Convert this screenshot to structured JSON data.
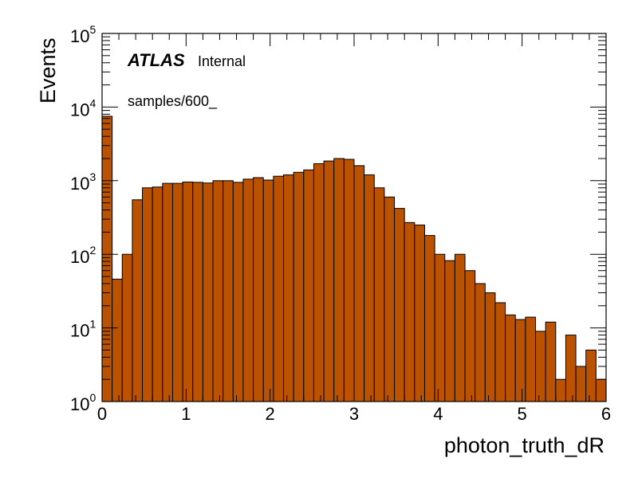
{
  "chart_data": {
    "type": "bar",
    "xlabel": "photon_truth_dR",
    "ylabel": "Events",
    "xlim": [
      0,
      6
    ],
    "ylim": [
      1,
      100000
    ],
    "y_scale": "log",
    "x_ticks": [
      "0",
      "1",
      "2",
      "3",
      "4",
      "5",
      "6"
    ],
    "y_ticks": [
      {
        "base": "10",
        "exp": "0"
      },
      {
        "base": "10",
        "exp": "1"
      },
      {
        "base": "10",
        "exp": "2"
      },
      {
        "base": "10",
        "exp": "3"
      },
      {
        "base": "10",
        "exp": "4"
      },
      {
        "base": "10",
        "exp": "5"
      }
    ],
    "bin_width": 0.12,
    "bin_edges_start": 0,
    "values": [
      7500,
      46,
      100,
      550,
      800,
      820,
      920,
      920,
      960,
      950,
      930,
      1000,
      1000,
      950,
      1050,
      1100,
      1020,
      1150,
      1200,
      1300,
      1400,
      1700,
      1850,
      2000,
      1950,
      1600,
      1200,
      800,
      600,
      420,
      270,
      250,
      180,
      100,
      82,
      100,
      60,
      40,
      30,
      22,
      15,
      13,
      14,
      9,
      12,
      2,
      8,
      3,
      5,
      2
    ],
    "fill_color": "#BB5200",
    "edge_color": "#000000",
    "annotations": {
      "experiment": "ATLAS",
      "status": "Internal",
      "sample": "samples/600_"
    }
  }
}
